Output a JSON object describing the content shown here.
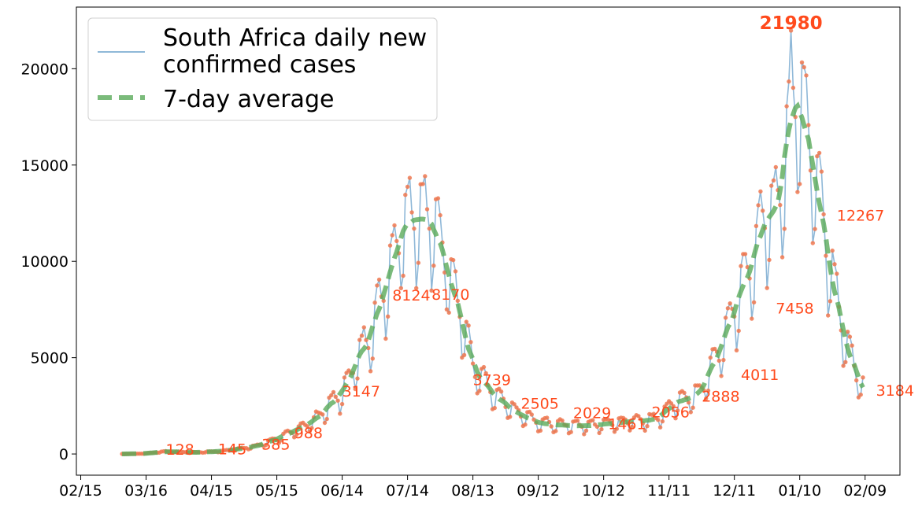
{
  "chart_data": {
    "type": "line",
    "title": "",
    "xlabel": "",
    "ylabel": "",
    "x_start": "2020-03-05",
    "x_tick_labels": [
      "02/15",
      "03/16",
      "04/15",
      "05/15",
      "06/14",
      "07/14",
      "08/13",
      "09/12",
      "10/12",
      "11/11",
      "12/11",
      "01/10",
      "02/09"
    ],
    "x_tick_dates": [
      "2020-02-15",
      "2020-03-16",
      "2020-04-15",
      "2020-05-15",
      "2020-06-14",
      "2020-07-14",
      "2020-08-13",
      "2020-09-12",
      "2020-10-12",
      "2020-11-11",
      "2020-12-11",
      "2021-01-10",
      "2021-02-09"
    ],
    "xlim": [
      "2020-02-13",
      "2021-02-25"
    ],
    "ylim": [
      -1100,
      23200
    ],
    "y_ticks": [
      0,
      5000,
      10000,
      15000,
      20000
    ],
    "y_tick_labels": [
      "0",
      "5000",
      "10000",
      "15000",
      "20000"
    ],
    "grid": false,
    "legend_position": "top-left",
    "anchor_points": [
      {
        "date": "2020-03-05",
        "value": 1
      },
      {
        "date": "2020-03-15",
        "value": 20
      },
      {
        "date": "2020-03-25",
        "value": 128
      },
      {
        "date": "2020-04-08",
        "value": 80
      },
      {
        "date": "2020-04-20",
        "value": 145
      },
      {
        "date": "2020-05-05",
        "value": 380
      },
      {
        "date": "2020-05-18",
        "value": 900
      },
      {
        "date": "2020-06-01",
        "value": 1700
      },
      {
        "date": "2020-06-14",
        "value": 3147
      },
      {
        "date": "2020-06-28",
        "value": 6500
      },
      {
        "date": "2020-07-06",
        "value": 9500
      },
      {
        "date": "2020-07-12",
        "value": 12000
      },
      {
        "date": "2020-07-18",
        "value": 12500
      },
      {
        "date": "2020-07-25",
        "value": 12000
      },
      {
        "date": "2020-08-01",
        "value": 10000
      },
      {
        "date": "2020-08-08",
        "value": 7000
      },
      {
        "date": "2020-08-13",
        "value": 4500
      },
      {
        "date": "2020-08-22",
        "value": 3100
      },
      {
        "date": "2020-09-01",
        "value": 2200
      },
      {
        "date": "2020-09-12",
        "value": 1600
      },
      {
        "date": "2020-09-25",
        "value": 1500
      },
      {
        "date": "2020-10-05",
        "value": 1450
      },
      {
        "date": "2020-10-15",
        "value": 1600
      },
      {
        "date": "2020-10-25",
        "value": 1700
      },
      {
        "date": "2020-11-05",
        "value": 1800
      },
      {
        "date": "2020-11-15",
        "value": 2700
      },
      {
        "date": "2020-11-25",
        "value": 3100
      },
      {
        "date": "2020-12-05",
        "value": 5500
      },
      {
        "date": "2020-12-12",
        "value": 7800
      },
      {
        "date": "2020-12-18",
        "value": 9500
      },
      {
        "date": "2020-12-24",
        "value": 11800
      },
      {
        "date": "2020-12-30",
        "value": 12500
      },
      {
        "date": "2021-01-04",
        "value": 16000
      },
      {
        "date": "2021-01-09",
        "value": 18800
      },
      {
        "date": "2021-01-14",
        "value": 16500
      },
      {
        "date": "2021-01-20",
        "value": 12500
      },
      {
        "date": "2021-01-27",
        "value": 8000
      },
      {
        "date": "2021-02-02",
        "value": 5000
      },
      {
        "date": "2021-02-08",
        "value": 3400
      }
    ],
    "series": [
      {
        "name": "South Africa daily new\nconfirmed cases",
        "legend_lines": [
          "South Africa daily new",
          "confirmed cases"
        ],
        "style": "thin-line-with-points",
        "color": "#8fb8d8",
        "point_color": "#f07850"
      },
      {
        "name": "7-day average",
        "legend_lines": [
          "7-day average"
        ],
        "style": "dashed-thick",
        "color": "#5aaa5a"
      }
    ],
    "annotations": [
      {
        "date": "2020-03-25",
        "value": 128,
        "text": "128"
      },
      {
        "date": "2020-04-18",
        "value": 145,
        "text": "145"
      },
      {
        "date": "2020-05-08",
        "value": 385,
        "text": "385"
      },
      {
        "date": "2020-05-23",
        "value": 988,
        "text": "988"
      },
      {
        "date": "2020-06-14",
        "value": 3147,
        "text": "3147"
      },
      {
        "date": "2020-07-07",
        "value": 8124,
        "text": "8124"
      },
      {
        "date": "2020-07-25",
        "value": 8170,
        "text": "8170"
      },
      {
        "date": "2020-08-13",
        "value": 3739,
        "text": "3739"
      },
      {
        "date": "2020-09-04",
        "value": 2505,
        "text": "2505"
      },
      {
        "date": "2020-09-28",
        "value": 2029,
        "text": "2029"
      },
      {
        "date": "2020-10-14",
        "value": 1461,
        "text": "1461"
      },
      {
        "date": "2020-11-03",
        "value": 2056,
        "text": "2056"
      },
      {
        "date": "2020-11-26",
        "value": 2888,
        "text": "2888"
      },
      {
        "date": "2020-12-14",
        "value": 4011,
        "text": "4011"
      },
      {
        "date": "2020-12-30",
        "value": 7458,
        "text": "7458"
      },
      {
        "date": "2021-01-27",
        "value": 12267,
        "text": "12267"
      },
      {
        "date": "2021-02-14",
        "value": 3184,
        "text": "3184"
      },
      {
        "date": "2021-01-06",
        "value": 21980,
        "text": "21980",
        "emphasis": true
      }
    ]
  },
  "colors": {
    "raw_line": "#8fb8d8",
    "points": "#f07850",
    "average": "#5aaa5a",
    "annotation": "#ff4a1c"
  }
}
